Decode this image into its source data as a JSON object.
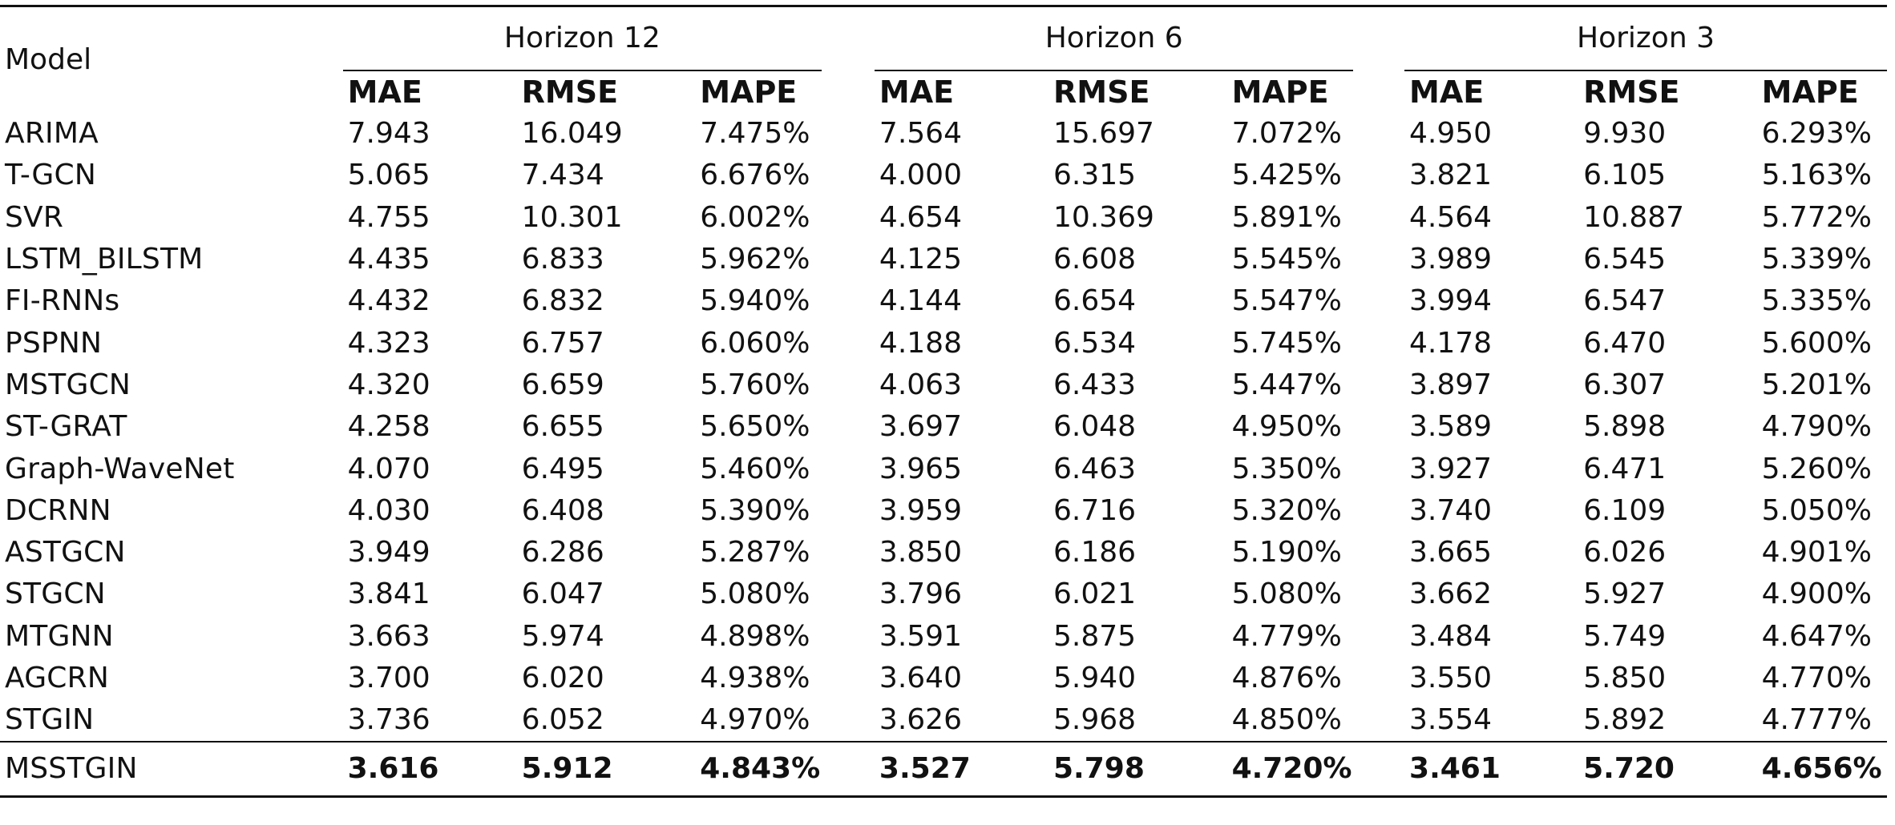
{
  "header": {
    "model_label": "Model",
    "groups": [
      "Horizon 12",
      "Horizon 6",
      "Horizon 3"
    ],
    "metrics": [
      "MAE",
      "RMSE",
      "MAPE"
    ]
  },
  "rows": [
    {
      "model": "ARIMA",
      "values": [
        "7.943",
        "16.049",
        "7.475%",
        "7.564",
        "15.697",
        "7.072%",
        "4.950",
        "9.930",
        "6.293%"
      ]
    },
    {
      "model": "T-GCN",
      "values": [
        "5.065",
        "7.434",
        "6.676%",
        "4.000",
        "6.315",
        "5.425%",
        "3.821",
        "6.105",
        "5.163%"
      ]
    },
    {
      "model": "SVR",
      "values": [
        "4.755",
        "10.301",
        "6.002%",
        "4.654",
        "10.369",
        "5.891%",
        "4.564",
        "10.887",
        "5.772%"
      ]
    },
    {
      "model": "LSTM_BILSTM",
      "values": [
        "4.435",
        "6.833",
        "5.962%",
        "4.125",
        "6.608",
        "5.545%",
        "3.989",
        "6.545",
        "5.339%"
      ]
    },
    {
      "model": "FI-RNNs",
      "values": [
        "4.432",
        "6.832",
        "5.940%",
        "4.144",
        "6.654",
        "5.547%",
        "3.994",
        "6.547",
        "5.335%"
      ]
    },
    {
      "model": "PSPNN",
      "values": [
        "4.323",
        "6.757",
        "6.060%",
        "4.188",
        "6.534",
        "5.745%",
        "4.178",
        "6.470",
        "5.600%"
      ]
    },
    {
      "model": "MSTGCN",
      "values": [
        "4.320",
        "6.659",
        "5.760%",
        "4.063",
        "6.433",
        "5.447%",
        "3.897",
        "6.307",
        "5.201%"
      ]
    },
    {
      "model": "ST-GRAT",
      "values": [
        "4.258",
        "6.655",
        "5.650%",
        "3.697",
        "6.048",
        "4.950%",
        "3.589",
        "5.898",
        "4.790%"
      ]
    },
    {
      "model": "Graph-WaveNet",
      "values": [
        "4.070",
        "6.495",
        "5.460%",
        "3.965",
        "6.463",
        "5.350%",
        "3.927",
        "6.471",
        "5.260%"
      ]
    },
    {
      "model": "DCRNN",
      "values": [
        "4.030",
        "6.408",
        "5.390%",
        "3.959",
        "6.716",
        "5.320%",
        "3.740",
        "6.109",
        "5.050%"
      ]
    },
    {
      "model": "ASTGCN",
      "values": [
        "3.949",
        "6.286",
        "5.287%",
        "3.850",
        "6.186",
        "5.190%",
        "3.665",
        "6.026",
        "4.901%"
      ]
    },
    {
      "model": "STGCN",
      "values": [
        "3.841",
        "6.047",
        "5.080%",
        "3.796",
        "6.021",
        "5.080%",
        "3.662",
        "5.927",
        "4.900%"
      ]
    },
    {
      "model": "MTGNN",
      "values": [
        "3.663",
        "5.974",
        "4.898%",
        "3.591",
        "5.875",
        "4.779%",
        "3.484",
        "5.749",
        "4.647%"
      ]
    },
    {
      "model": "AGCRN",
      "values": [
        "3.700",
        "6.020",
        "4.938%",
        "3.640",
        "5.940",
        "4.876%",
        "3.550",
        "5.850",
        "4.770%"
      ]
    },
    {
      "model": "STGIN",
      "values": [
        "3.736",
        "6.052",
        "4.970%",
        "3.626",
        "5.968",
        "4.850%",
        "3.554",
        "5.892",
        "4.777%"
      ]
    }
  ],
  "best": {
    "model": "MSSTGIN",
    "values": [
      "3.616",
      "5.912",
      "4.843%",
      "3.527",
      "5.798",
      "4.720%",
      "3.461",
      "5.720",
      "4.656%"
    ]
  }
}
